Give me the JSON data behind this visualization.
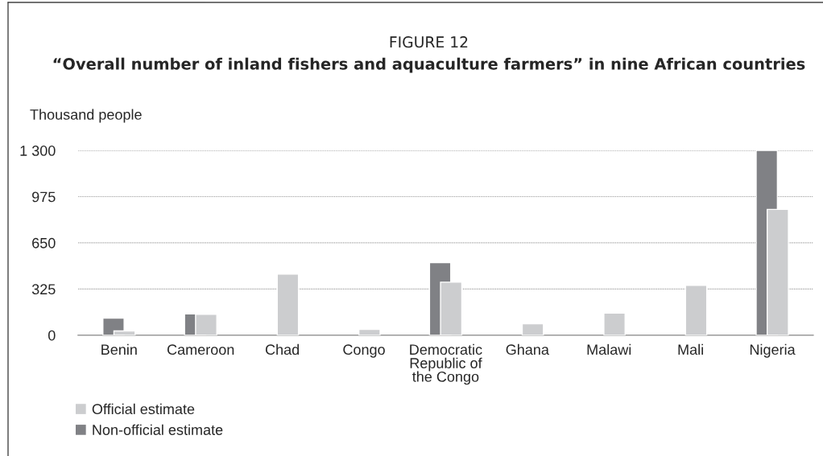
{
  "chart_data": {
    "type": "bar",
    "title": "FIGURE 12",
    "subtitle": "“Overall number of inland fishers and aquaculture farmers” in nine African countries",
    "ylabel": "Thousand people",
    "categories": [
      "Benin",
      "Cameroon",
      "Chad",
      "Congo",
      "Democratic\nRepublic of\nthe Congo",
      "Ghana",
      "Malawi",
      "Mali",
      "Nigeria"
    ],
    "series": [
      {
        "name": "Non-official estimate",
        "color": "#808185",
        "values": [
          120,
          150,
          null,
          null,
          510,
          null,
          null,
          null,
          1300
        ]
      },
      {
        "name": "Official estimate",
        "color": "#cccdcf",
        "values": [
          30,
          147,
          430,
          40,
          373,
          80,
          155,
          350,
          885
        ]
      }
    ],
    "ylim": [
      0,
      1300
    ],
    "yticks": [
      0,
      325,
      650,
      975,
      {
        "value": 1300,
        "label": "1 300"
      }
    ],
    "grid": "y",
    "legend": "bottom left"
  }
}
